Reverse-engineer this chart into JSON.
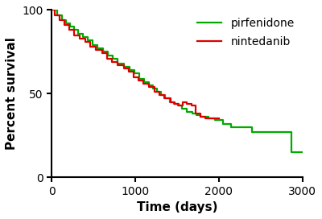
{
  "pirfenidone_x": [
    0,
    60,
    120,
    170,
    220,
    270,
    320,
    370,
    430,
    490,
    550,
    610,
    670,
    730,
    790,
    860,
    930,
    990,
    1050,
    1110,
    1160,
    1210,
    1260,
    1310,
    1360,
    1410,
    1460,
    1510,
    1560,
    1620,
    1680,
    1730,
    1780,
    1830,
    1880,
    1950,
    2050,
    2150,
    2400,
    2800,
    2870,
    3000
  ],
  "pirfenidone_y": [
    100,
    97,
    94,
    92,
    90,
    88,
    86,
    84,
    82,
    79,
    77,
    75,
    73,
    71,
    68,
    66,
    64,
    62,
    59,
    57,
    55,
    53,
    51,
    49,
    47,
    45,
    44,
    43,
    41,
    39,
    38,
    37,
    36,
    36,
    35,
    34,
    32,
    30,
    27,
    27,
    15,
    15
  ],
  "nintedanib_x": [
    0,
    40,
    90,
    150,
    210,
    270,
    330,
    400,
    460,
    530,
    600,
    660,
    720,
    790,
    860,
    920,
    980,
    1040,
    1100,
    1160,
    1230,
    1290,
    1350,
    1420,
    1470,
    1520,
    1570,
    1620,
    1670,
    1720,
    1780,
    1840,
    1900,
    1950,
    2000
  ],
  "nintedanib_y": [
    100,
    97,
    94,
    91,
    88,
    85,
    83,
    81,
    78,
    76,
    74,
    71,
    69,
    67,
    65,
    63,
    60,
    58,
    56,
    54,
    51,
    49,
    47,
    45,
    44,
    43,
    45,
    44,
    43,
    38,
    36,
    35,
    35,
    35,
    35
  ],
  "pirfenidone_color": "#00aa00",
  "nintedanib_color": "#dd0000",
  "xlabel": "Time (days)",
  "ylabel": "Percent survival",
  "xlim": [
    0,
    3000
  ],
  "ylim": [
    0,
    100
  ],
  "xticks": [
    0,
    1000,
    2000,
    3000
  ],
  "yticks": [
    0,
    50,
    100
  ],
  "linewidth": 1.6,
  "legend_labels": [
    "pirfenidone",
    "nintedanib"
  ],
  "legend_loc": "upper right",
  "xlabel_fontsize": 11,
  "ylabel_fontsize": 11,
  "tick_fontsize": 10
}
